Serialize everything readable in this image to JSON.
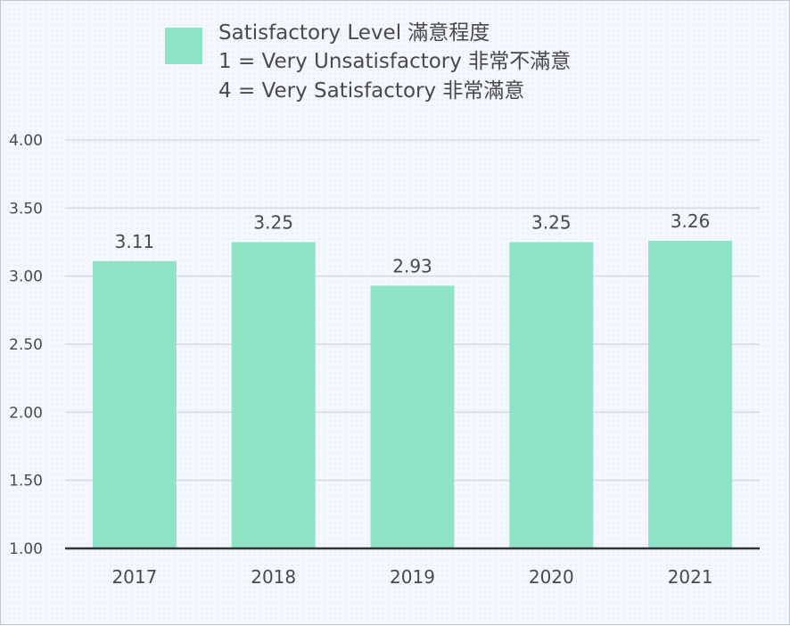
{
  "legend": {
    "color": "#8fe3c6",
    "lines": [
      "Satisfactory Level 滿意程度",
      "1 = Very Unsatisfactory 非常不滿意",
      "4 = Very Satisfactory 非常滿意"
    ]
  },
  "chart_data": {
    "type": "bar",
    "categories": [
      "2017",
      "2018",
      "2019",
      "2020",
      "2021"
    ],
    "series": [
      {
        "name": "Satisfactory Level 滿意程度",
        "values": [
          3.11,
          3.25,
          2.93,
          3.25,
          3.26
        ],
        "data_labels": [
          "3.11",
          "3.25",
          "2.93",
          "3.25",
          "3.26"
        ],
        "color": "#8fe3c6"
      }
    ],
    "y_ticks": [
      "1.00",
      "1.50",
      "2.00",
      "2.50",
      "3.00",
      "3.50",
      "4.00"
    ],
    "ylim": [
      1,
      4
    ],
    "grid": true,
    "legend_position": "top",
    "title": "",
    "xlabel": "",
    "ylabel": ""
  }
}
